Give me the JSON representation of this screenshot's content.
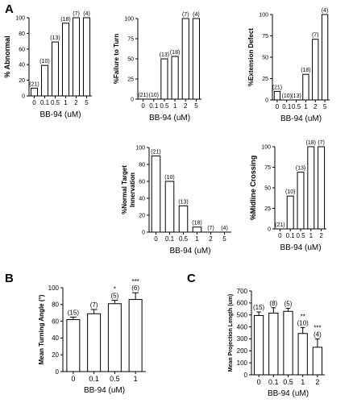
{
  "panel_letters": [
    "A",
    "B",
    "C"
  ],
  "chart_data": [
    {
      "type": "bar",
      "panel": "A",
      "ylabel": "% Abnormal",
      "xlabel": "BB-94 (uM)",
      "categories": [
        "0",
        "0.1",
        "0.5",
        "1",
        "2",
        "5"
      ],
      "values": [
        10,
        39,
        69,
        93,
        100,
        100
      ],
      "n_labels": [
        "(21)",
        "(10)",
        "(13)",
        "(18)",
        "(7)",
        "(4)"
      ],
      "sig_labels": [
        "",
        "",
        "",
        "",
        "",
        ""
      ],
      "error": [
        0,
        0,
        0,
        0,
        0,
        0
      ],
      "ylim": [
        0,
        100
      ],
      "yticks": [
        "0",
        "20",
        "40",
        "60",
        "80",
        "100"
      ],
      "ytick_values": [
        0,
        20,
        40,
        60,
        80,
        100
      ]
    },
    {
      "type": "bar",
      "panel": "",
      "ylabel": "%Failure to Turn",
      "xlabel": "BB-94 (uM)",
      "categories": [
        "0",
        "0.1",
        "0.5",
        "1",
        "2",
        "5"
      ],
      "values": [
        0,
        0,
        50,
        53,
        100,
        100
      ],
      "n_labels": [
        "(21)",
        "(10)",
        "(13)",
        "(18)",
        "(7)",
        "(4)"
      ],
      "sig_labels": [
        "",
        "",
        "",
        "",
        "",
        ""
      ],
      "error": [
        0,
        0,
        0,
        0,
        0,
        0
      ],
      "ylim": [
        0,
        100
      ],
      "yticks": [
        "0",
        "25",
        "50",
        "75",
        "100"
      ],
      "ytick_values": [
        0,
        25,
        50,
        75,
        100
      ]
    },
    {
      "type": "bar",
      "panel": "",
      "ylabel": "%Extension Defect",
      "xlabel": "BB-94 (uM)",
      "categories": [
        "0",
        "0.1",
        "0.5",
        "1",
        "2",
        "5"
      ],
      "values": [
        10,
        0,
        0,
        30,
        71,
        100
      ],
      "n_labels": [
        "(21)",
        "(10)",
        "(13)",
        "(18)",
        "(7)",
        "(4)"
      ],
      "sig_labels": [
        "",
        "",
        "",
        "",
        "",
        ""
      ],
      "error": [
        0,
        0,
        0,
        0,
        0,
        0
      ],
      "ylim": [
        0,
        100
      ],
      "yticks": [
        "0",
        "25",
        "50",
        "75",
        "100"
      ],
      "ytick_values": [
        0,
        25,
        50,
        75,
        100
      ]
    },
    {
      "type": "bar",
      "panel": "",
      "ylabel": "%Normal Target Innervation",
      "xlabel": "BB-94 (uM)",
      "categories": [
        "0",
        "0.1",
        "0.5",
        "1",
        "2",
        "5"
      ],
      "values": [
        90,
        60,
        31,
        6,
        0,
        0
      ],
      "n_labels": [
        "(21)",
        "(10)",
        "(13)",
        "(18)",
        "(7)",
        "(4)"
      ],
      "sig_labels": [
        "",
        "",
        "",
        "",
        "",
        ""
      ],
      "error": [
        0,
        0,
        0,
        0,
        0,
        0
      ],
      "ylim": [
        0,
        100
      ],
      "yticks": [
        "0",
        "20",
        "40",
        "60",
        "80",
        "100"
      ],
      "ytick_values": [
        0,
        20,
        40,
        60,
        80,
        100
      ]
    },
    {
      "type": "bar",
      "panel": "",
      "ylabel": "%Midline Crossing",
      "xlabel": "BB-94 (uM)",
      "categories": [
        "0",
        "0.1",
        "0.5",
        "1",
        "2"
      ],
      "values": [
        0,
        40,
        69,
        100,
        100
      ],
      "n_labels": [
        "(21)",
        "(10)",
        "(13)",
        "(18)",
        "(7)"
      ],
      "sig_labels": [
        "",
        "",
        "",
        "",
        ""
      ],
      "error": [
        0,
        0,
        0,
        0,
        0
      ],
      "ylim": [
        0,
        100
      ],
      "yticks": [
        "0",
        "25",
        "50",
        "75",
        "100"
      ],
      "ytick_values": [
        0,
        25,
        50,
        75,
        100
      ]
    },
    {
      "type": "bar",
      "panel": "B",
      "ylabel": "Mean Turning Angle (°)",
      "xlabel": "BB-94 (uM)",
      "categories": [
        "0",
        "0.1",
        "0.5",
        "1"
      ],
      "values": [
        62,
        69,
        81,
        86
      ],
      "n_labels": [
        "(15)",
        "(7)",
        "(5)",
        "(6)"
      ],
      "sig_labels": [
        "",
        "",
        "*",
        "***"
      ],
      "error": [
        3,
        5,
        4,
        8
      ],
      "ylim": [
        0,
        100
      ],
      "yticks": [
        "0",
        "20",
        "40",
        "60",
        "80",
        "100"
      ],
      "ytick_values": [
        0,
        20,
        40,
        60,
        80,
        100
      ]
    },
    {
      "type": "bar",
      "panel": "C",
      "ylabel": "Mean Projection Length (um)",
      "xlabel": "BB-94 (uM)",
      "categories": [
        "0",
        "0.1",
        "0.5",
        "1",
        "2"
      ],
      "values": [
        495,
        515,
        530,
        345,
        230
      ],
      "n_labels": [
        "(15)",
        "(8)",
        "(5)",
        "(10)",
        "(4)"
      ],
      "sig_labels": [
        "",
        "",
        "",
        "**",
        "***"
      ],
      "error": [
        30,
        45,
        25,
        50,
        70
      ],
      "ylim": [
        0,
        700
      ],
      "yticks": [
        "0",
        "100",
        "200",
        "300",
        "400",
        "500",
        "600",
        "700"
      ],
      "ytick_values": [
        0,
        100,
        200,
        300,
        400,
        500,
        600,
        700
      ]
    }
  ]
}
